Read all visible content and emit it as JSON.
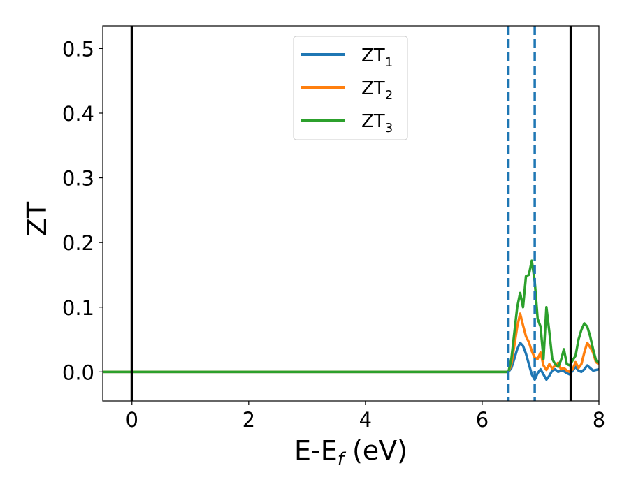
{
  "chart_data": {
    "type": "line",
    "title": "",
    "xlabel": "E-E",
    "xlabel_sub": "f",
    "xlabel_unit": " (eV)",
    "ylabel": "ZT",
    "xlim": [
      -0.5,
      8.0
    ],
    "ylim": [
      -0.045,
      0.535
    ],
    "xticks": [
      0,
      2,
      4,
      6,
      8
    ],
    "xtick_labels": [
      "0",
      "2",
      "4",
      "6",
      "8"
    ],
    "yticks": [
      0.0,
      0.1,
      0.2,
      0.3,
      0.4,
      0.5
    ],
    "ytick_labels": [
      "0.0",
      "0.1",
      "0.2",
      "0.3",
      "0.4",
      "0.5"
    ],
    "grid": false,
    "legend_position": "top-center",
    "vlines": [
      {
        "x": 0.0,
        "style": "solid",
        "color": "#000000"
      },
      {
        "x": 7.52,
        "style": "solid",
        "color": "#000000"
      },
      {
        "x": 6.45,
        "style": "dashed",
        "color": "#1f77b4"
      },
      {
        "x": 6.9,
        "style": "dashed",
        "color": "#1f77b4"
      }
    ],
    "series": [
      {
        "name": "ZT",
        "name_sub": "1",
        "color": "#1f77b4",
        "x": [
          -0.5,
          6.45,
          6.5,
          6.55,
          6.6,
          6.65,
          6.7,
          6.75,
          6.8,
          6.85,
          6.9,
          6.95,
          7.0,
          7.05,
          7.1,
          7.15,
          7.2,
          7.25,
          7.3,
          7.35,
          7.4,
          7.45,
          7.5,
          7.55,
          7.6,
          7.65,
          7.7,
          7.75,
          7.8,
          7.85,
          7.9,
          7.95,
          8.0
        ],
        "y": [
          0.0,
          0.0,
          0.006,
          0.02,
          0.035,
          0.045,
          0.04,
          0.028,
          0.012,
          -0.004,
          -0.012,
          -0.002,
          0.004,
          -0.004,
          -0.012,
          -0.006,
          0.002,
          0.004,
          0.0,
          0.002,
          0.001,
          -0.002,
          -0.004,
          0.002,
          0.008,
          0.002,
          0.0,
          0.004,
          0.01,
          0.006,
          0.002,
          0.003,
          0.004
        ]
      },
      {
        "name": "ZT",
        "name_sub": "2",
        "color": "#ff7f0e",
        "x": [
          -0.5,
          6.45,
          6.5,
          6.55,
          6.6,
          6.65,
          6.7,
          6.75,
          6.8,
          6.85,
          6.9,
          6.95,
          7.0,
          7.05,
          7.1,
          7.15,
          7.2,
          7.25,
          7.3,
          7.35,
          7.4,
          7.45,
          7.5,
          7.55,
          7.6,
          7.65,
          7.7,
          7.75,
          7.8,
          7.85,
          7.9,
          7.95,
          8.0
        ],
        "y": [
          0.0,
          0.0,
          0.012,
          0.04,
          0.07,
          0.09,
          0.072,
          0.055,
          0.046,
          0.032,
          0.022,
          0.02,
          0.03,
          0.01,
          0.003,
          0.012,
          0.005,
          0.01,
          0.014,
          0.004,
          0.006,
          0.002,
          0.0,
          0.004,
          0.015,
          0.006,
          0.012,
          0.03,
          0.045,
          0.038,
          0.03,
          0.015,
          0.012
        ]
      },
      {
        "name": "ZT",
        "name_sub": "3",
        "color": "#2ca02c",
        "x": [
          -0.5,
          6.45,
          6.5,
          6.55,
          6.6,
          6.65,
          6.7,
          6.75,
          6.8,
          6.85,
          6.9,
          6.95,
          7.0,
          7.05,
          7.1,
          7.15,
          7.2,
          7.25,
          7.3,
          7.35,
          7.4,
          7.45,
          7.5,
          7.55,
          7.6,
          7.65,
          7.7,
          7.75,
          7.8,
          7.85,
          7.9,
          7.95,
          8.0
        ],
        "y": [
          0.0,
          0.0,
          0.02,
          0.06,
          0.1,
          0.122,
          0.1,
          0.148,
          0.15,
          0.172,
          0.14,
          0.082,
          0.07,
          0.02,
          0.1,
          0.062,
          0.02,
          0.012,
          0.008,
          0.018,
          0.035,
          0.012,
          0.01,
          0.018,
          0.025,
          0.05,
          0.065,
          0.075,
          0.07,
          0.055,
          0.035,
          0.018,
          0.014
        ]
      }
    ]
  }
}
